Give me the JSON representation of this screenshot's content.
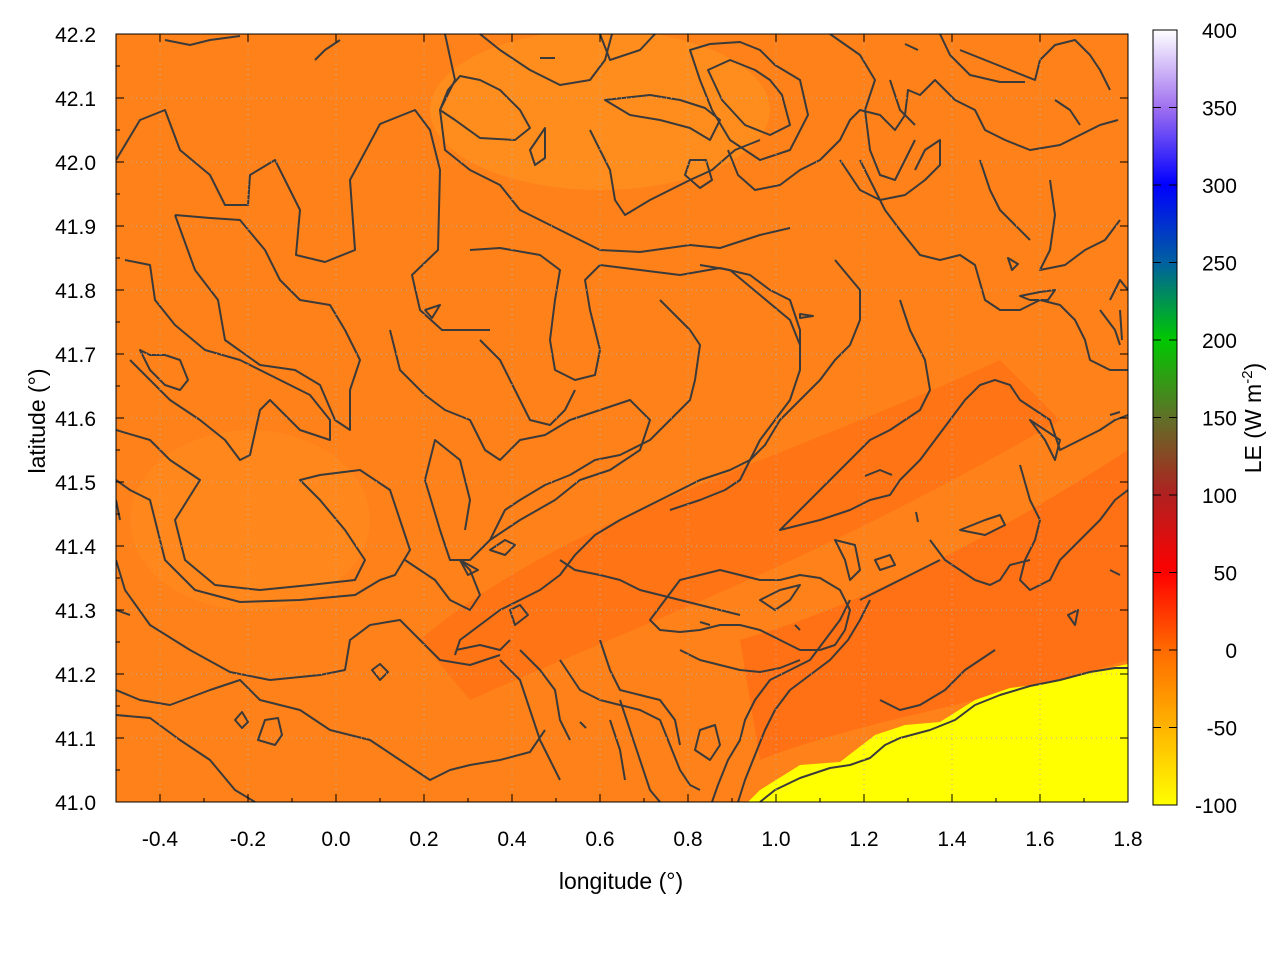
{
  "chart_data": {
    "type": "heatmap",
    "x_axis": {
      "label": "longitude (°)",
      "range": [
        -0.5,
        1.8
      ],
      "ticks": [
        -0.4,
        -0.2,
        0.0,
        0.2,
        0.4,
        0.6,
        0.8,
        1.0,
        1.2,
        1.4,
        1.6,
        1.8
      ],
      "tick_labels": [
        "-0.4",
        "-0.2",
        "0.0",
        "0.2",
        "0.4",
        "0.6",
        "0.8",
        "1.0",
        "1.2",
        "1.4",
        "1.6",
        "1.8"
      ]
    },
    "y_axis": {
      "label": "latitude (°)",
      "range": [
        41.0,
        42.2
      ],
      "ticks": [
        41.0,
        41.1,
        41.2,
        41.3,
        41.4,
        41.5,
        41.6,
        41.7,
        41.8,
        41.9,
        42.0,
        42.1,
        42.2
      ],
      "tick_labels": [
        "41.0",
        "41.1",
        "41.2",
        "41.3",
        "41.4",
        "41.5",
        "41.6",
        "41.7",
        "41.8",
        "41.9",
        "42.0",
        "42.1",
        "42.2"
      ]
    },
    "colorbar": {
      "label_main": "LE (W m",
      "label_sup": "-2",
      "label_end": ")",
      "range": [
        -100,
        400
      ],
      "ticks": [
        -100,
        -50,
        0,
        50,
        100,
        150,
        200,
        250,
        300,
        350,
        400
      ],
      "tick_labels": [
        "-100",
        "-50",
        "0",
        "50",
        "100",
        "150",
        "200",
        "250",
        "300",
        "350",
        "400"
      ],
      "stops": [
        {
          "value": -100,
          "color": "#ffff00"
        },
        {
          "value": -50,
          "color": "#ffb400"
        },
        {
          "value": 0,
          "color": "#ff6a00"
        },
        {
          "value": 50,
          "color": "#ff0000"
        },
        {
          "value": 100,
          "color": "#b02020"
        },
        {
          "value": 150,
          "color": "#607028"
        },
        {
          "value": 200,
          "color": "#00c800"
        },
        {
          "value": 250,
          "color": "#0060a0"
        },
        {
          "value": 300,
          "color": "#0000ff"
        },
        {
          "value": 350,
          "color": "#a070f0"
        },
        {
          "value": 400,
          "color": "#ffffff"
        }
      ]
    },
    "field": {
      "typical_value_range": [
        -40,
        10
      ],
      "sea_value": -100,
      "contour_color": "#3a3a3a",
      "grid": true,
      "grid_color": "#b0b0b0"
    }
  }
}
